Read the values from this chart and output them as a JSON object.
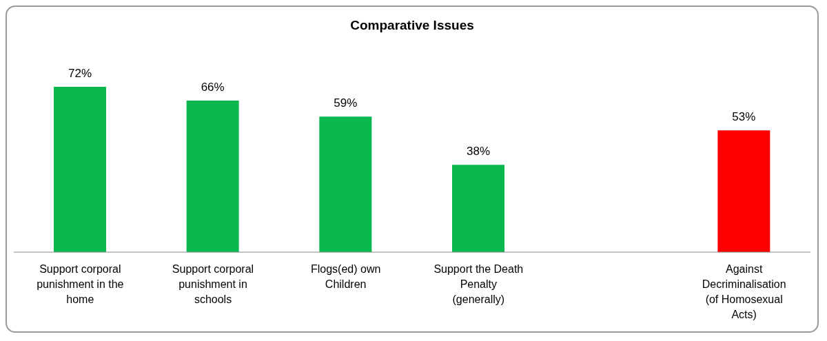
{
  "chart_data": {
    "type": "bar",
    "title": "Comparative Issues",
    "categories": [
      "Support corporal punishment in the home",
      "Support corporal punishment in schools",
      "Flogs(ed) own Children",
      "Support the Death Penalty (generally)",
      null,
      "Against Decriminalisation (of Homosexual Acts)"
    ],
    "values": [
      72,
      66,
      59,
      38,
      null,
      53
    ],
    "colors": [
      "#0ab850",
      "#0ab850",
      "#0ab850",
      "#0ab850",
      "#0ab850",
      "#ff0000"
    ],
    "value_labels": [
      "72%",
      "66%",
      "59%",
      "38%",
      null,
      "53%"
    ],
    "grid": false,
    "legend": false
  }
}
